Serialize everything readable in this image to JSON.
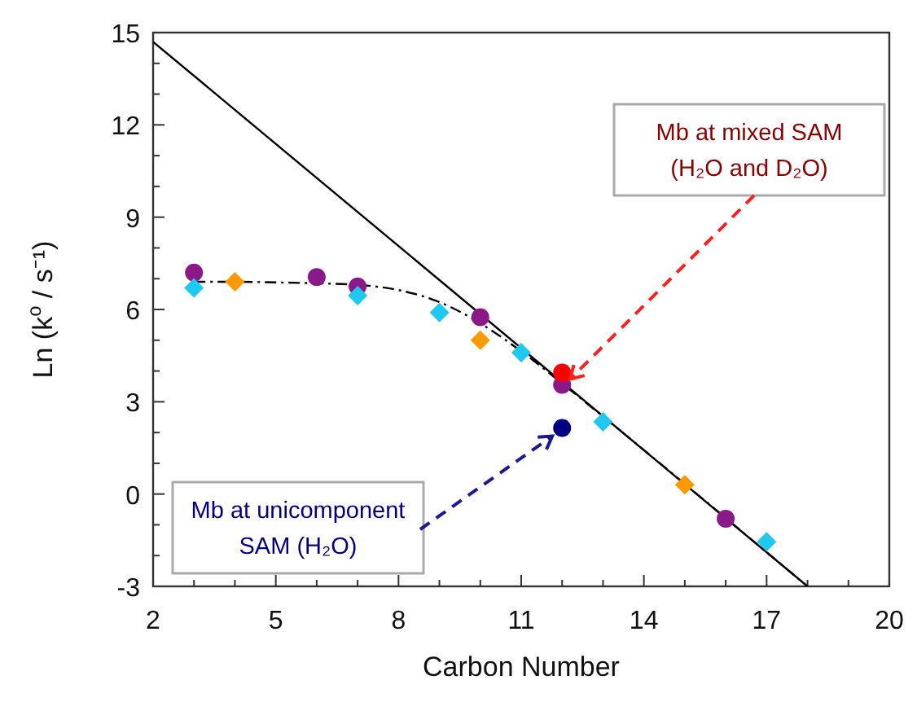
{
  "chart_data": {
    "type": "scatter",
    "xlabel": "Carbon Number",
    "ylabel": "Ln (k$^{o}$ / s⁻¹)",
    "xlim": [
      2,
      20
    ],
    "ylim": [
      -3,
      15
    ],
    "xticks": [
      2,
      {
        "value": 3,
        "label": null
      },
      {
        "value": 4,
        "label": null
      },
      5,
      {
        "value": 6,
        "label": null
      },
      {
        "value": 7,
        "label": null
      },
      8,
      {
        "value": 9,
        "label": null
      },
      {
        "value": 10,
        "label": null
      },
      11,
      {
        "value": 12,
        "label": null
      },
      {
        "value": 13,
        "label": null
      },
      14,
      {
        "value": 15,
        "label": null
      },
      {
        "value": 16,
        "label": null
      },
      17,
      {
        "value": 18,
        "label": null
      },
      {
        "value": 19,
        "label": null
      },
      20
    ],
    "yticks": [
      -3,
      {
        "value": -2,
        "label": null
      },
      {
        "value": -1,
        "label": null
      },
      0,
      {
        "value": 1,
        "label": null
      },
      {
        "value": 2,
        "label": null
      },
      3,
      {
        "value": 4,
        "label": null
      },
      {
        "value": 5,
        "label": null
      },
      6,
      {
        "value": 7,
        "label": null
      },
      {
        "value": 8,
        "label": null
      },
      9,
      {
        "value": 10,
        "label": null
      },
      {
        "value": 11,
        "label": null
      },
      12,
      {
        "value": 13,
        "label": null
      },
      {
        "value": 14,
        "label": null
      },
      15
    ],
    "series": [
      {
        "type": "line",
        "color": "#000000",
        "line_style": "solid",
        "marker": "none",
        "x": [
          2,
          18
        ],
        "values": [
          14.7,
          -3
        ]
      },
      {
        "type": "line",
        "color": "#000000",
        "line_style": "dashed",
        "marker": "none",
        "x": [
          3,
          4,
          5,
          6,
          7,
          8,
          9,
          10,
          11,
          12,
          13,
          14,
          15,
          16,
          17,
          18
        ],
        "values": [
          6.9,
          6.9,
          6.88,
          6.85,
          6.8,
          6.63,
          6.24,
          5.55,
          4.64,
          3.6,
          2.52,
          1.43,
          0.33,
          -0.78,
          -1.89,
          -3
        ]
      },
      {
        "color": "#8b1a89",
        "marker": "circle",
        "x": [
          3,
          6,
          7,
          10,
          12,
          16
        ],
        "values": [
          7.2,
          7.05,
          6.75,
          5.75,
          3.55,
          -0.8
        ]
      },
      {
        "color": "#1ec8f0",
        "marker": "diamond",
        "x": [
          3,
          7,
          9,
          11,
          13,
          17
        ],
        "values": [
          6.7,
          6.45,
          5.9,
          4.6,
          2.35,
          -1.55
        ]
      },
      {
        "color": "#ff9900",
        "marker": "diamond",
        "x": [
          4,
          10,
          15
        ],
        "values": [
          6.9,
          5.0,
          0.3
        ]
      },
      {
        "color": "#ff0000",
        "marker": "circle",
        "x": [
          12
        ],
        "values": [
          3.95
        ]
      },
      {
        "color": "#000080",
        "marker": "circle",
        "x": [
          12
        ],
        "values": [
          2.15
        ]
      }
    ],
    "annotations": [
      {
        "text": "Mb at mixed SAM\n(H₂O and D₂O)",
        "x": 12,
        "y": 3.95
      },
      {
        "text": "Mb at unicomponent\nSAM (H₂O)",
        "x": 12,
        "y": 2.15
      }
    ]
  }
}
